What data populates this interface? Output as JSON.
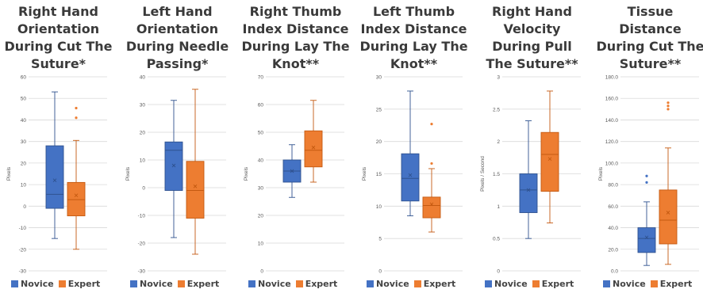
{
  "legend": [
    "Novice",
    "Expert"
  ],
  "colors": {
    "novice_fill": "#4472c4",
    "novice_edge": "#2f528f",
    "expert_fill": "#ed7d31",
    "expert_edge": "#c55a11",
    "grid": "#d9d9d9",
    "axis_text": "#595959"
  },
  "chart_data": [
    {
      "type": "box",
      "title": [
        "Right Hand",
        "Orientation",
        "During Cut The",
        "Suture*"
      ],
      "ylabel": "Pixels",
      "ylim": [
        -30,
        60
      ],
      "yticks": [
        -30,
        -20,
        -10,
        0,
        10,
        20,
        30,
        40,
        50,
        60
      ],
      "ytick_labels": [
        "-30",
        "-20",
        "-10",
        "0",
        "10",
        "20",
        "30",
        "40",
        "50",
        "60"
      ],
      "series": [
        {
          "name": "Novice",
          "min": -15,
          "q1": -1,
          "median": 5.5,
          "q3": 28,
          "max": 53,
          "mean": 12,
          "outliers": []
        },
        {
          "name": "Expert",
          "min": -20,
          "q1": -4.5,
          "median": 3,
          "q3": 11,
          "max": 30.5,
          "mean": 5,
          "outliers": [
            41,
            45.5
          ]
        }
      ]
    },
    {
      "type": "box",
      "title": [
        "Left Hand",
        "Orientation",
        "During Needle",
        "Passing*"
      ],
      "ylabel": "Pixels",
      "ylim": [
        -30,
        40
      ],
      "yticks": [
        -30,
        -20,
        -10,
        0,
        10,
        20,
        30,
        40
      ],
      "ytick_labels": [
        "-30",
        "-20",
        "-10",
        "0",
        "10",
        "20",
        "30",
        "40"
      ],
      "series": [
        {
          "name": "Novice",
          "min": -18,
          "q1": -1,
          "median": 13.5,
          "q3": 16.5,
          "max": 31.5,
          "mean": 8,
          "outliers": []
        },
        {
          "name": "Expert",
          "min": -24,
          "q1": -11,
          "median": -1,
          "q3": 9.5,
          "max": 35.5,
          "mean": 0.5,
          "outliers": []
        }
      ]
    },
    {
      "type": "box",
      "title": [
        "Right Thumb",
        "Index Distance",
        "During Lay The",
        "Knot**"
      ],
      "ylabel": "Pixels",
      "ylim": [
        0,
        70
      ],
      "yticks": [
        0,
        10,
        20,
        30,
        40,
        50,
        60,
        70
      ],
      "ytick_labels": [
        "0",
        "10",
        "20",
        "30",
        "40",
        "50",
        "60",
        "70"
      ],
      "series": [
        {
          "name": "Novice",
          "min": 26.5,
          "q1": 32,
          "median": 36,
          "q3": 40,
          "max": 45.5,
          "mean": 36,
          "outliers": []
        },
        {
          "name": "Expert",
          "min": 32,
          "q1": 37.5,
          "median": 43.5,
          "q3": 50.5,
          "max": 61.5,
          "mean": 44.5,
          "outliers": []
        }
      ]
    },
    {
      "type": "box",
      "title": [
        "Left Thumb",
        "Index Distance",
        "During Lay The",
        "Knot**"
      ],
      "ylabel": "Pixels",
      "ylim": [
        0,
        30
      ],
      "yticks": [
        0,
        5,
        10,
        15,
        20,
        25,
        30
      ],
      "ytick_labels": [
        "0",
        "5",
        "10",
        "15",
        "20",
        "25",
        "30"
      ],
      "series": [
        {
          "name": "Novice",
          "min": 8.5,
          "q1": 10.8,
          "median": 14.3,
          "q3": 18.1,
          "max": 27.8,
          "mean": 14.8,
          "outliers": []
        },
        {
          "name": "Expert",
          "min": 6,
          "q1": 8.2,
          "median": 10.1,
          "q3": 11.4,
          "max": 15.8,
          "mean": 10.3,
          "outliers": [
            16.6,
            22.7
          ]
        }
      ]
    },
    {
      "type": "box",
      "title": [
        "Right Hand",
        "Velocity",
        "During Pull",
        "The Suture**"
      ],
      "ylabel": "Pixels / Second",
      "ylim": [
        0,
        3
      ],
      "yticks": [
        0,
        0.5,
        1,
        1.5,
        2,
        2.5,
        3
      ],
      "ytick_labels": [
        "0",
        "0.5",
        "1",
        "1.5",
        "2",
        "2.5",
        "3"
      ],
      "series": [
        {
          "name": "Novice",
          "min": 0.5,
          "q1": 0.9,
          "median": 1.25,
          "q3": 1.5,
          "max": 2.32,
          "mean": 1.25,
          "outliers": []
        },
        {
          "name": "Expert",
          "min": 0.74,
          "q1": 1.23,
          "median": 1.8,
          "q3": 2.14,
          "max": 2.78,
          "mean": 1.73,
          "outliers": []
        }
      ]
    },
    {
      "type": "box",
      "title": [
        "Tissue",
        "Distance",
        "During Cut The",
        "Suture**"
      ],
      "ylabel": "Pixels",
      "ylim": [
        0,
        180
      ],
      "yticks": [
        0,
        20,
        40,
        60,
        80,
        100,
        120,
        140,
        160,
        180
      ],
      "ytick_labels": [
        "0.0",
        "20.0",
        "40.0",
        "60.0",
        "80.0",
        "100.0",
        "120.0",
        "140.0",
        "160.0",
        "180.0"
      ],
      "series": [
        {
          "name": "Novice",
          "min": 5,
          "q1": 17,
          "median": 30,
          "q3": 40,
          "max": 64,
          "mean": 31,
          "outliers": [
            82,
            88
          ]
        },
        {
          "name": "Expert",
          "min": 6,
          "q1": 25,
          "median": 47,
          "q3": 75,
          "max": 114,
          "mean": 54,
          "outliers": [
            150,
            153,
            156
          ]
        }
      ]
    }
  ]
}
